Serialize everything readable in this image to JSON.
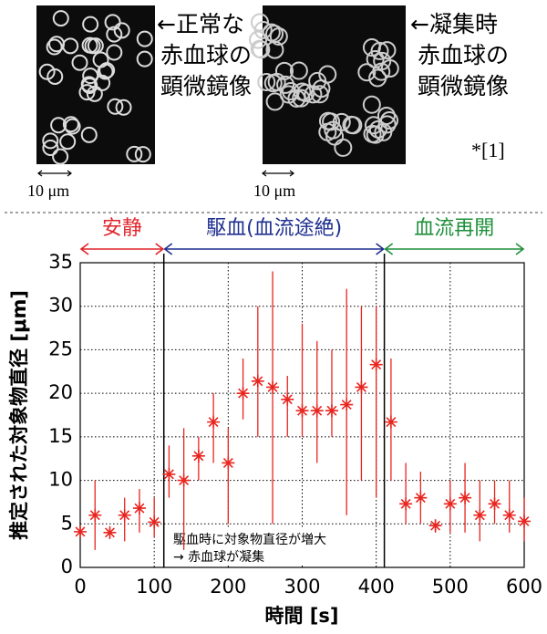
{
  "top": {
    "left_image": {
      "caption": [
        "←正常な",
        "赤血球の",
        "顕微鏡像"
      ],
      "scale": "10 μm"
    },
    "right_image": {
      "caption": [
        "←凝集時",
        "赤血球の",
        "顕微鏡像"
      ],
      "scale": "10 μm"
    },
    "citation": "*[1]"
  },
  "chart_data": {
    "type": "scatter",
    "ylabel": "推定された対象物直径 [μm]",
    "xlabel": "時間 [s]",
    "x": [
      0,
      20,
      40,
      60,
      80,
      100,
      120,
      140,
      160,
      180,
      200,
      220,
      240,
      260,
      280,
      300,
      320,
      340,
      360,
      380,
      400,
      420,
      440,
      460,
      480,
      500,
      520,
      540,
      560,
      580,
      600
    ],
    "values": [
      4.1,
      6,
      4,
      6,
      6.8,
      5.2,
      10.7,
      10,
      12.8,
      16.7,
      12,
      20,
      21.4,
      20.7,
      19.3,
      18,
      18,
      18,
      18.7,
      20.7,
      23.3,
      16.7,
      7.3,
      8,
      4.8,
      7.3,
      8,
      6,
      7.3,
      6,
      5.3
    ],
    "lower": [
      3.6,
      2,
      3.5,
      3,
      4,
      3.5,
      8,
      2,
      10,
      12,
      5,
      17,
      15,
      5,
      15,
      15,
      12,
      15,
      6,
      10,
      8,
      10,
      5,
      5,
      4,
      4,
      4,
      3,
      5,
      4,
      3
    ],
    "upper": [
      4.6,
      10,
      4.5,
      8,
      9,
      8,
      14,
      16,
      15,
      20,
      16,
      24,
      30,
      34,
      22,
      28,
      26,
      25,
      32,
      30,
      30,
      24,
      12,
      11,
      5.5,
      10,
      12,
      10,
      10,
      10,
      8
    ],
    "color": "#e8251f",
    "xlim": [
      0,
      600
    ],
    "xticks": [
      0,
      100,
      200,
      300,
      400,
      500,
      600
    ],
    "ylim": [
      0,
      35
    ],
    "yticks": [
      0,
      5,
      10,
      15,
      20,
      25,
      30,
      35
    ],
    "grid": true,
    "phases": [
      {
        "label": "安静",
        "color": "#e0242a",
        "start": 0,
        "end": 113
      },
      {
        "label": "駆血(血流途絶)",
        "color": "#1f2f8f",
        "start": 113,
        "end": 411
      },
      {
        "label": "血流再開",
        "color": "#1e8f3a",
        "start": 411,
        "end": 600
      }
    ],
    "annotation": [
      "駆血時に対象物直径が増大",
      "→ 赤血球が凝集"
    ]
  }
}
